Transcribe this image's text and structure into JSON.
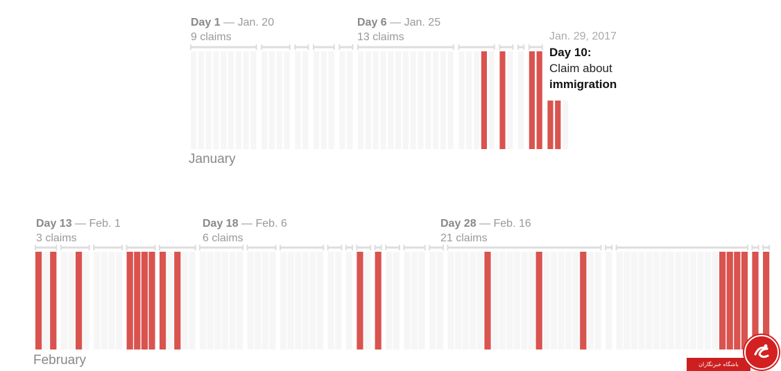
{
  "chart_data": {
    "type": "bar",
    "title": "",
    "colors": {
      "claim": "#d9534f",
      "empty": "#f6f6f6",
      "bracket": "#dddddd"
    },
    "panels": [
      {
        "month": "January",
        "days": [
          {
            "day": 1,
            "date": "Jan. 20",
            "claims": 9,
            "pattern": [
              0,
              0,
              0,
              0,
              0,
              0,
              0,
              0,
              0
            ]
          },
          {
            "day": 2,
            "pattern": [
              0,
              0,
              0,
              0
            ]
          },
          {
            "day": 3,
            "pattern": [
              0,
              0
            ]
          },
          {
            "day": 4,
            "pattern": [
              0,
              0,
              0
            ]
          },
          {
            "day": 5,
            "pattern": [
              0,
              0
            ]
          },
          {
            "day": 6,
            "date": "Jan. 25",
            "claims": 13,
            "pattern": [
              0,
              0,
              0,
              0,
              0,
              0,
              0,
              0,
              0,
              0,
              0,
              0,
              0
            ]
          },
          {
            "day": 7,
            "pattern": [
              0,
              0,
              0,
              1,
              0
            ]
          },
          {
            "day": 8,
            "pattern": [
              1,
              0
            ]
          },
          {
            "day": 9,
            "pattern": [
              0
            ]
          },
          {
            "day": 10,
            "pattern": [
              1,
              1
            ]
          }
        ],
        "tail": [
          1,
          1,
          0
        ]
      },
      {
        "month": "February",
        "days": [
          {
            "day": 13,
            "date": "Feb. 1",
            "claims": 3,
            "pattern": [
              1,
              0,
              1
            ]
          },
          {
            "day": 14,
            "pattern": [
              0,
              0,
              1,
              0
            ]
          },
          {
            "day": 15,
            "pattern": [
              0,
              0,
              0,
              0
            ]
          },
          {
            "day": 16,
            "pattern": [
              1,
              1,
              1,
              1
            ]
          },
          {
            "day": 17,
            "pattern": [
              1,
              0,
              1,
              0,
              0
            ]
          },
          {
            "day": 18,
            "date": "Feb. 6",
            "claims": 6,
            "pattern": [
              0,
              0,
              0,
              0,
              0,
              0
            ]
          },
          {
            "day": 19,
            "pattern": [
              0,
              0,
              0,
              0
            ]
          },
          {
            "day": 20,
            "pattern": [
              0,
              0,
              0,
              0,
              0,
              0
            ]
          },
          {
            "day": 21,
            "pattern": [
              0,
              0
            ]
          },
          {
            "day": 22,
            "pattern": [
              0
            ]
          },
          {
            "day": 23,
            "pattern": [
              1,
              0
            ]
          },
          {
            "day": 24,
            "pattern": [
              1
            ]
          },
          {
            "day": 25,
            "pattern": [
              0,
              0
            ]
          },
          {
            "day": 26,
            "pattern": [
              0,
              0,
              0
            ]
          },
          {
            "day": 27,
            "pattern": [
              0,
              0
            ]
          },
          {
            "day": 28,
            "date": "Feb. 16",
            "claims": 21,
            "pattern": [
              0,
              0,
              0,
              0,
              0,
              1,
              0,
              0,
              0,
              0,
              0,
              0,
              1,
              0,
              0,
              0,
              0,
              0,
              1,
              0,
              0
            ]
          },
          {
            "day": 29,
            "pattern": [
              0
            ]
          },
          {
            "day": 30,
            "pattern": [
              0,
              0,
              0,
              0,
              0,
              0,
              0,
              0,
              0,
              0,
              0,
              0,
              0,
              0,
              1,
              1,
              1,
              1
            ]
          },
          {
            "day": 31,
            "pattern": [
              1
            ]
          },
          {
            "day": 32,
            "pattern": [
              1
            ]
          }
        ],
        "tail": []
      }
    ],
    "annotation": {
      "date": "Jan. 29, 2017",
      "title": "Day 10:",
      "text": "Claim about",
      "strong": "immigration"
    }
  },
  "labels": {
    "jan_day1": {
      "day": "Day 1",
      "date": "Jan. 20",
      "claims": "9 claims"
    },
    "jan_day6": {
      "day": "Day 6",
      "date": "Jan. 25",
      "claims": "13 claims"
    },
    "feb_day13": {
      "day": "Day 13",
      "date": "Feb. 1",
      "claims": "3 claims"
    },
    "feb_day18": {
      "day": "Day 18",
      "date": "Feb. 6",
      "claims": "6 claims"
    },
    "feb_day28": {
      "day": "Day 28",
      "date": "Feb. 16",
      "claims": "21 claims"
    },
    "dash": "—",
    "month_january": "January",
    "month_february": "February"
  },
  "watermark": {
    "text": "باشگاه خبرنگاران",
    "icon": "logo-icon"
  }
}
